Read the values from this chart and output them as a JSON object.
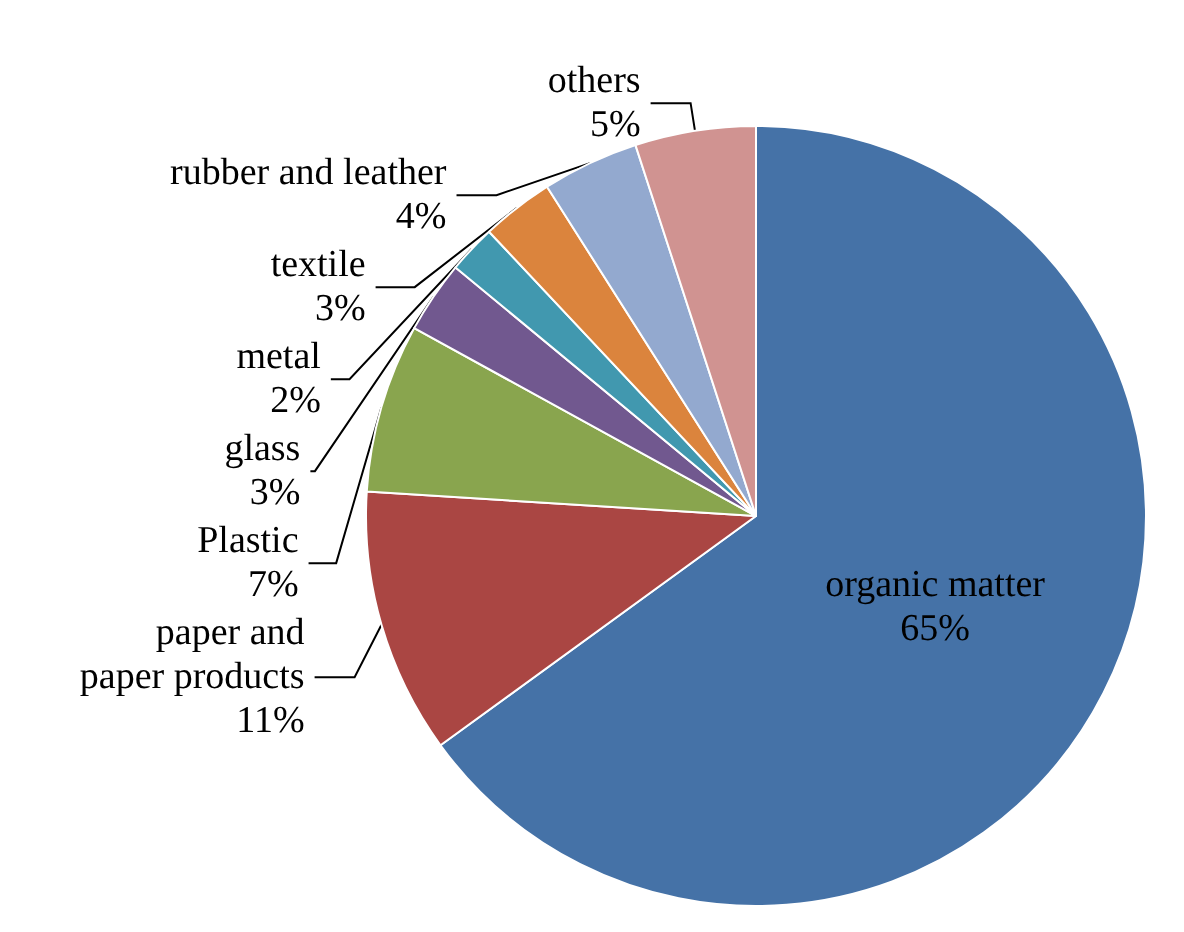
{
  "chart_data": {
    "type": "pie",
    "categories": [
      "organic matter",
      "paper and\npaper products",
      "Plastic",
      "glass",
      "metal",
      "textile",
      "rubber and leather",
      "others"
    ],
    "values": [
      65,
      11,
      7,
      3,
      2,
      3,
      4,
      5
    ],
    "value_labels": [
      "65%",
      "11%",
      "7%",
      "3%",
      "2%",
      "3%",
      "4%",
      "5%"
    ],
    "colors": [
      "#4572a7",
      "#aa4643",
      "#89a54e",
      "#71588f",
      "#4198af",
      "#db843d",
      "#93a9cf",
      "#d09391"
    ],
    "legend": false
  }
}
